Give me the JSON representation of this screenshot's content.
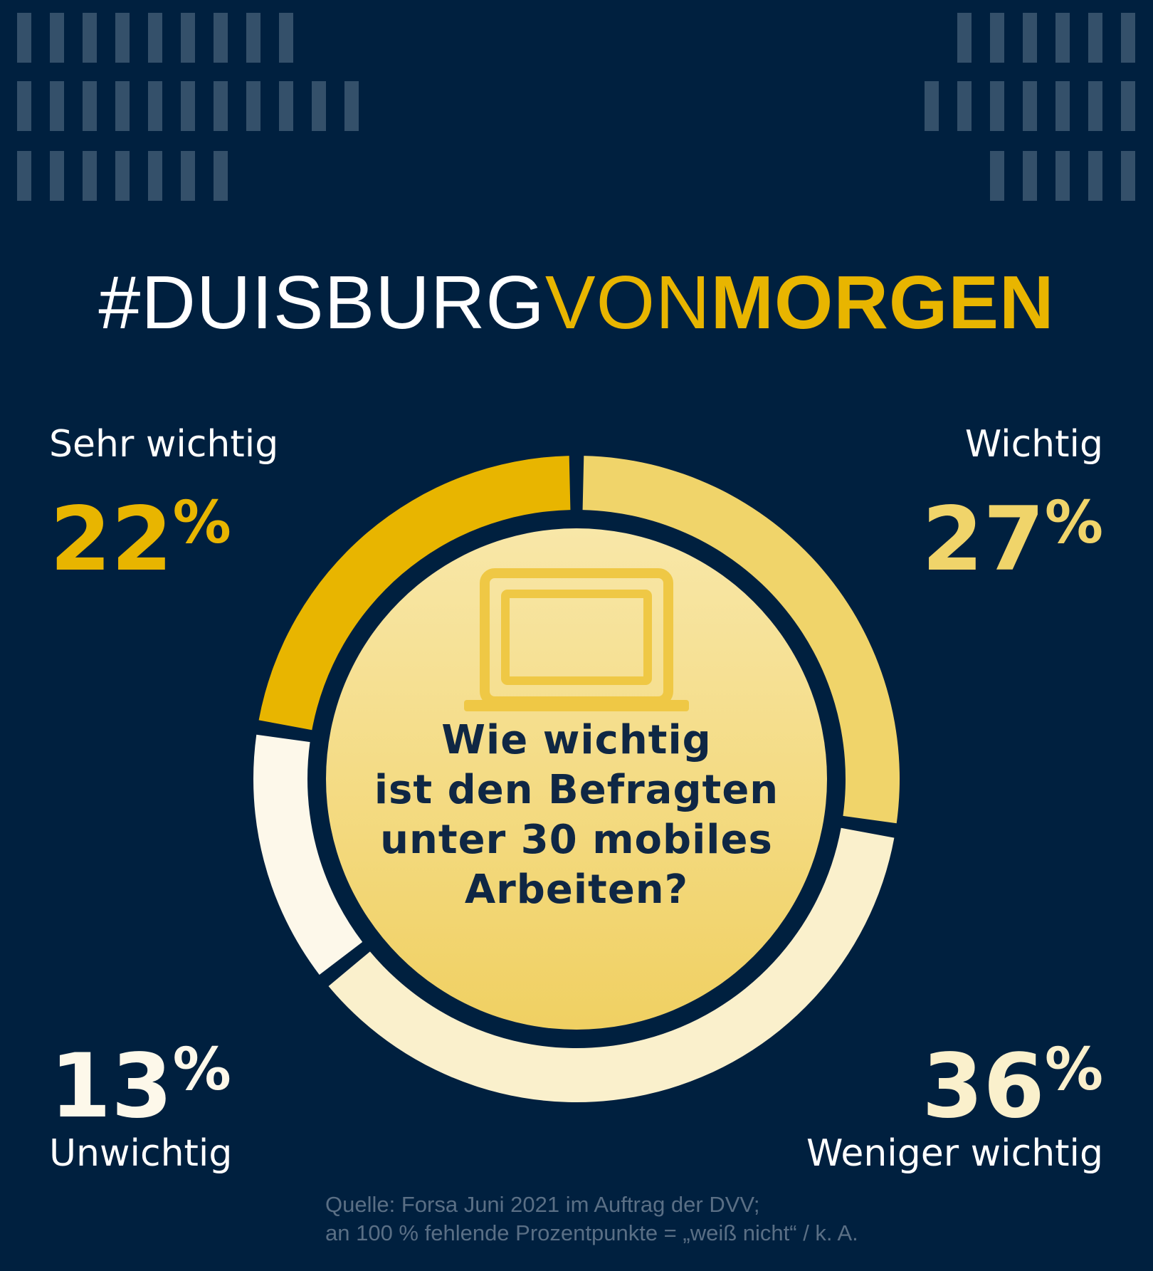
{
  "headline": {
    "part1": "#DUISBURG",
    "part2": "VON",
    "part3": "MORGEN"
  },
  "chart_data": {
    "type": "pie",
    "title": "Wie wichtig ist den Befragten unter 30 mobiles Arbeiten?",
    "categories": [
      "Sehr wichtig",
      "Wichtig",
      "Weniger wichtig",
      "Unwichtig"
    ],
    "values": [
      22,
      27,
      36,
      13
    ],
    "unit": "%",
    "colors": [
      "#e8b500",
      "#f0d46a",
      "#faf0cc",
      "#fdf8ea"
    ],
    "legend": "labels at corners"
  },
  "labels": {
    "sehr_wichtig": {
      "name": "Sehr wichtig",
      "value": "22",
      "unit": "%"
    },
    "wichtig": {
      "name": "Wichtig",
      "value": "27",
      "unit": "%"
    },
    "unwichtig": {
      "name": "Unwichtig",
      "value": "13",
      "unit": "%"
    },
    "weniger_wichtig": {
      "name": "Weniger wichtig",
      "value": "36",
      "unit": "%"
    }
  },
  "center": {
    "question_line1": "Wie wichtig",
    "question_line2": "ist den Befragten",
    "question_line3": "unter 30 mobiles",
    "question_line4": "Arbeiten?",
    "icon": "laptop-icon"
  },
  "source": {
    "line1": "Quelle: Forsa Juni 2021 im Auftrag der DVV;",
    "line2": "an 100 % fehlende Prozentpunkte = „weiß nicht“ / k. A."
  },
  "colors": {
    "background": "#00203f",
    "accent": "#e8b500",
    "decoration": "#34506a"
  }
}
